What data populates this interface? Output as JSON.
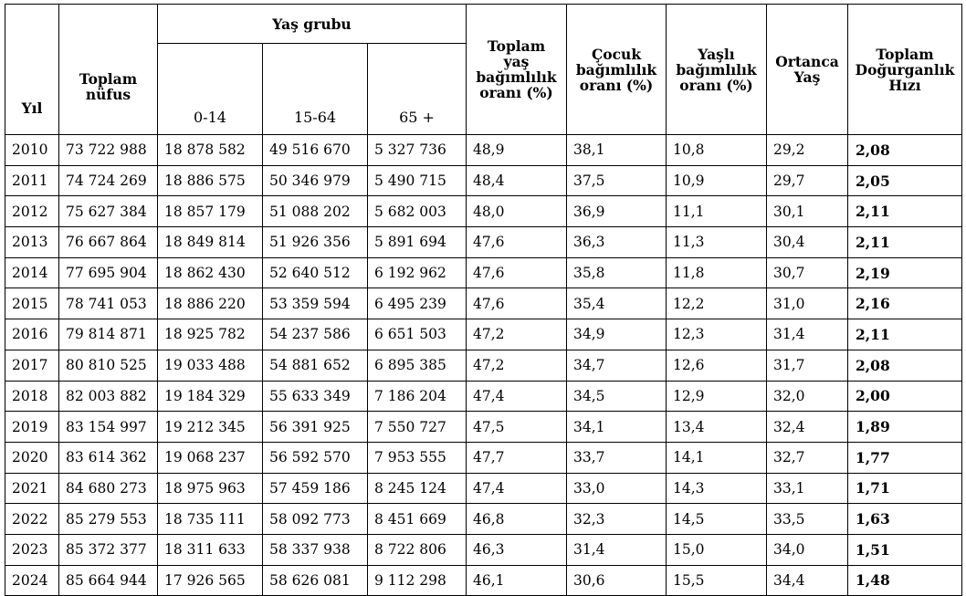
{
  "headers": {
    "year": "Yıl",
    "total_pop": [
      "Toplam",
      "nüfus"
    ],
    "age_group": "Yaş grubu",
    "ages": [
      "0-14",
      "15-64",
      "65 +"
    ],
    "total_dep": [
      "Toplam",
      "yaş",
      "bağımlılık",
      "oranı (%)"
    ],
    "child_dep": [
      "Çocuk",
      "bağımlılık",
      "oranı (%)"
    ],
    "elderly_dep": [
      "Yaşlı",
      "bağımlılık",
      "oranı (%)"
    ],
    "median_age": [
      "Ortanca",
      "Yaş"
    ],
    "tfr": [
      "Toplam",
      "Doğurganlık",
      "Hızı"
    ]
  },
  "rows": [
    [
      "2010",
      "73 722 988",
      "18 878 582",
      "49 516 670",
      "5 327 736",
      "48,9",
      "38,1",
      "10,8",
      "29,2",
      "2,08"
    ],
    [
      "2011",
      "74 724 269",
      "18 886 575",
      "50 346 979",
      "5 490 715",
      "48,4",
      "37,5",
      "10,9",
      "29,7",
      "2,05"
    ],
    [
      "2012",
      "75 627 384",
      "18 857 179",
      "51 088 202",
      "5 682 003",
      "48,0",
      "36,9",
      "11,1",
      "30,1",
      "2,11"
    ],
    [
      "2013",
      "76 667 864",
      "18 849 814",
      "51 926 356",
      "5 891 694",
      "47,6",
      "36,3",
      "11,3",
      "30,4",
      "2,11"
    ],
    [
      "2014",
      "77 695 904",
      "18 862 430",
      "52 640 512",
      "6 192 962",
      "47,6",
      "35,8",
      "11,8",
      "30,7",
      "2,19"
    ],
    [
      "2015",
      "78 741 053",
      "18 886 220",
      "53 359 594",
      "6 495 239",
      "47,6",
      "35,4",
      "12,2",
      "31,0",
      "2,16"
    ],
    [
      "2016",
      "79 814 871",
      "18 925 782",
      "54 237 586",
      "6 651 503",
      "47,2",
      "34,9",
      "12,3",
      "31,4",
      "2,11"
    ],
    [
      "2017",
      "80 810 525",
      "19 033 488",
      "54 881 652",
      "6 895 385",
      "47,2",
      "34,7",
      "12,6",
      "31,7",
      "2,08"
    ],
    [
      "2018",
      "82 003 882",
      "19 184 329",
      "55 633 349",
      "7 186 204",
      "47,4",
      "34,5",
      "12,9",
      "32,0",
      "2,00"
    ],
    [
      "2019",
      "83 154 997",
      "19 212 345",
      "56 391 925",
      "7 550 727",
      "47,5",
      "34,1",
      "13,4",
      "32,4",
      "1,89"
    ],
    [
      "2020",
      "83 614 362",
      "19 068 237",
      "56 592 570",
      "7 953 555",
      "47,7",
      "33,7",
      "14,1",
      "32,7",
      "1,77"
    ],
    [
      "2021",
      "84 680 273",
      "18 975 963",
      "57 459 186",
      "8 245 124",
      "47,4",
      "33,0",
      "14,3",
      "33,1",
      "1,71"
    ],
    [
      "2022",
      "85 279 553",
      "18 735 111",
      "58 092 773",
      "8 451 669",
      "46,8",
      "32,3",
      "14,5",
      "33,5",
      "1,63"
    ],
    [
      "2023",
      "85 372 377",
      "18 311 633",
      "58 337 938",
      "8 722 806",
      "46,3",
      "31,4",
      "15,0",
      "34,0",
      "1,51"
    ],
    [
      "2024",
      "85 664 944",
      "17 926 565",
      "58 626 081",
      "9 112 298",
      "46,1",
      "30,6",
      "15,5",
      "34,4",
      "1,48"
    ]
  ]
}
